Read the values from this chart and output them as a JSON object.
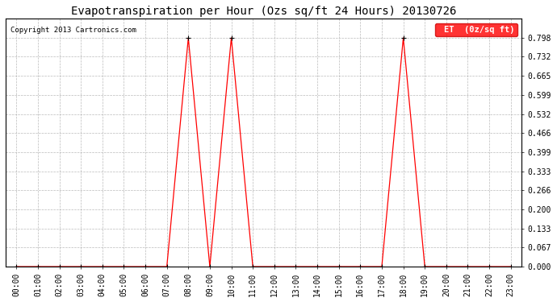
{
  "title": "Evapotranspiration per Hour (Ozs sq/ft 24 Hours) 20130726",
  "copyright": "Copyright 2013 Cartronics.com",
  "legend_label": "ET  (0z/sq ft)",
  "x_labels": [
    "00:00",
    "01:00",
    "02:00",
    "03:00",
    "04:00",
    "05:00",
    "06:00",
    "07:00",
    "08:00",
    "09:00",
    "10:00",
    "11:00",
    "12:00",
    "13:00",
    "14:00",
    "15:00",
    "16:00",
    "17:00",
    "18:00",
    "19:00",
    "20:00",
    "21:00",
    "22:00",
    "23:00"
  ],
  "y_values": [
    0.0,
    0.0,
    0.0,
    0.0,
    0.0,
    0.0,
    0.0,
    0.0,
    0.798,
    0.0,
    0.798,
    0.0,
    0.0,
    0.0,
    0.0,
    0.0,
    0.0,
    0.0,
    0.798,
    0.0,
    0.0,
    0.0,
    0.0,
    0.0
  ],
  "line_color": "#ff0000",
  "background_color": "#ffffff",
  "grid_color": "#aaaaaa",
  "title_fontsize": 10,
  "tick_fontsize": 7,
  "ylabel_fontsize": 7,
  "ylim_max": 0.864,
  "yticks": [
    0.0,
    0.067,
    0.133,
    0.2,
    0.266,
    0.333,
    0.399,
    0.466,
    0.532,
    0.599,
    0.665,
    0.732,
    0.798
  ],
  "legend_bg": "#ff0000",
  "legend_text_color": "#ffffff",
  "marker": "+",
  "marker_color": "#000000",
  "marker_size": 4
}
